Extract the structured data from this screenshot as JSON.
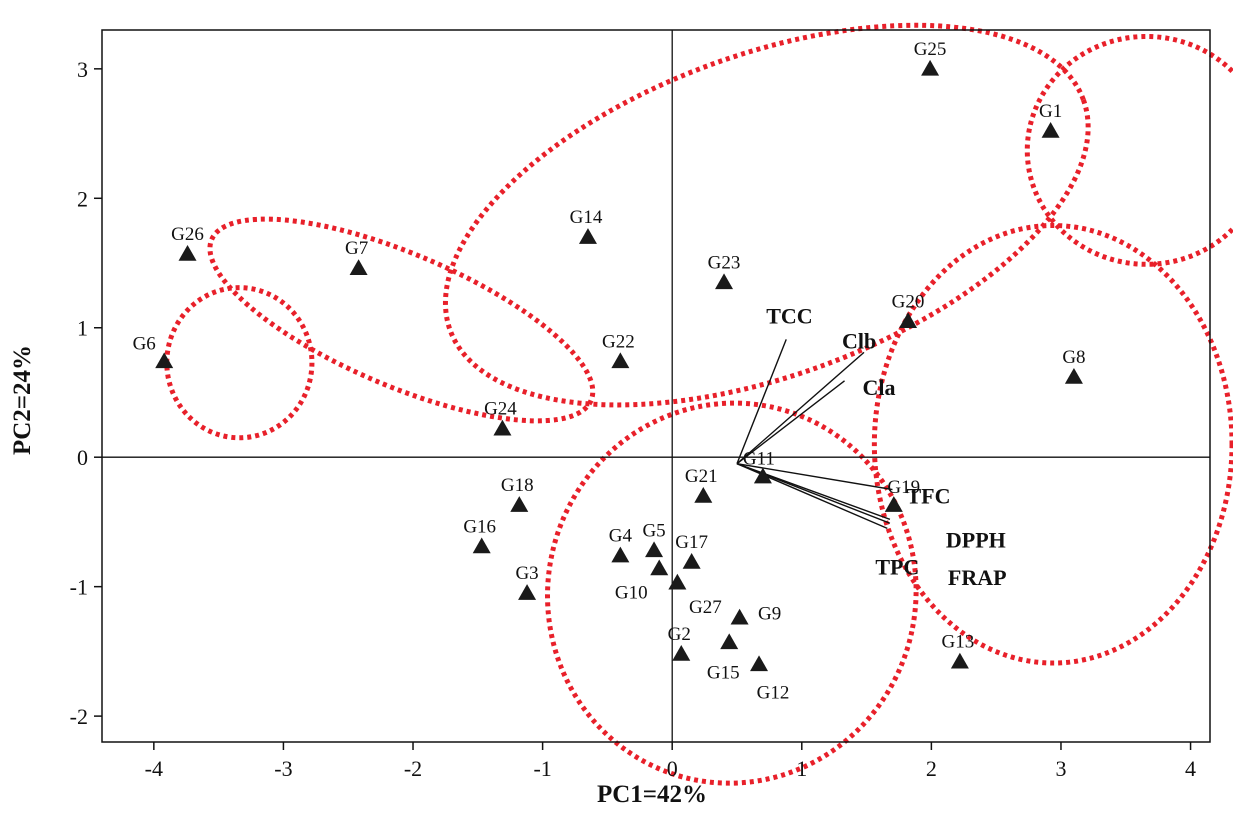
{
  "chart_data": {
    "type": "scatter",
    "title": "",
    "xlabel": "PC1=42%",
    "ylabel": "PC2=24%",
    "xlim": [
      -4.4,
      4.15
    ],
    "ylim": [
      -2.2,
      3.3
    ],
    "x_ticks": [
      -4,
      -3,
      -2,
      -1,
      0,
      1,
      2,
      3,
      4
    ],
    "y_ticks": [
      -2,
      -1,
      0,
      1,
      2,
      3
    ],
    "grid": false,
    "reference_lines": {
      "x": 0,
      "y": 0
    },
    "marker": "triangle",
    "points": [
      {
        "label": "G1",
        "x": 2.92,
        "y": 2.52
      },
      {
        "label": "G2",
        "x": 0.07,
        "y": -1.52
      },
      {
        "label": "G3",
        "x": -1.12,
        "y": -1.05
      },
      {
        "label": "G4",
        "x": -0.4,
        "y": -0.76
      },
      {
        "label": "G5",
        "x": -0.14,
        "y": -0.72
      },
      {
        "label": "G6",
        "x": -3.92,
        "y": 0.74
      },
      {
        "label": "G7",
        "x": -2.42,
        "y": 1.46
      },
      {
        "label": "G8",
        "x": 3.1,
        "y": 0.62
      },
      {
        "label": "G9",
        "x": 0.52,
        "y": -1.24
      },
      {
        "label": "G10",
        "x": -0.1,
        "y": -0.86
      },
      {
        "label": "G11",
        "x": 0.7,
        "y": -0.15
      },
      {
        "label": "G12",
        "x": 0.67,
        "y": -1.6
      },
      {
        "label": "G13",
        "x": 2.22,
        "y": -1.58
      },
      {
        "label": "G14",
        "x": -0.65,
        "y": 1.7
      },
      {
        "label": "G15",
        "x": 0.44,
        "y": -1.43
      },
      {
        "label": "G16",
        "x": -1.47,
        "y": -0.69
      },
      {
        "label": "G17",
        "x": 0.15,
        "y": -0.81
      },
      {
        "label": "G18",
        "x": -1.18,
        "y": -0.37
      },
      {
        "label": "G19",
        "x": 1.71,
        "y": -0.37
      },
      {
        "label": "G20",
        "x": 1.82,
        "y": 1.05
      },
      {
        "label": "G21",
        "x": 0.24,
        "y": -0.3
      },
      {
        "label": "G22",
        "x": -0.4,
        "y": 0.74
      },
      {
        "label": "G23",
        "x": 0.4,
        "y": 1.35
      },
      {
        "label": "G24",
        "x": -1.31,
        "y": 0.22
      },
      {
        "label": "G25",
        "x": 1.99,
        "y": 3.0
      },
      {
        "label": "G26",
        "x": -3.74,
        "y": 1.57
      },
      {
        "label": "G27",
        "x": 0.04,
        "y": -0.97
      }
    ],
    "loadings_origin": [
      0.5,
      -0.05
    ],
    "loadings": [
      {
        "label": "TCC",
        "x": 0.88,
        "y": 0.91
      },
      {
        "label": "Clb",
        "x": 1.48,
        "y": 0.81
      },
      {
        "label": "Cla",
        "x": 1.33,
        "y": 0.59
      },
      {
        "label": "TFC",
        "x": 1.7,
        "y": -0.25
      },
      {
        "label": "DPPH",
        "x": 1.68,
        "y": -0.48
      },
      {
        "label": "FRAP",
        "x": 1.68,
        "y": -0.51
      },
      {
        "label": "TPC",
        "x": 1.66,
        "y": -0.55
      }
    ],
    "clusters": [
      {
        "cx": -3.34,
        "cy": 0.73,
        "rx": 0.56,
        "ry": 0.58,
        "angle": 0
      },
      {
        "cx": -2.09,
        "cy": 1.06,
        "rx": 1.59,
        "ry": 0.51,
        "angle": -23
      },
      {
        "cx": 0.73,
        "cy": 1.87,
        "rx": 2.6,
        "ry": 1.24,
        "angle": 20
      },
      {
        "cx": 3.66,
        "cy": 2.37,
        "rx": 0.92,
        "ry": 0.88,
        "angle": 0
      },
      {
        "cx": 2.94,
        "cy": 0.1,
        "rx": 1.38,
        "ry": 1.69,
        "angle": 0
      },
      {
        "cx": 0.46,
        "cy": -1.05,
        "rx": 1.42,
        "ry": 1.47,
        "angle": -12
      }
    ],
    "cluster_color": "#e8202a",
    "marker_color": "#1a1a1a"
  }
}
